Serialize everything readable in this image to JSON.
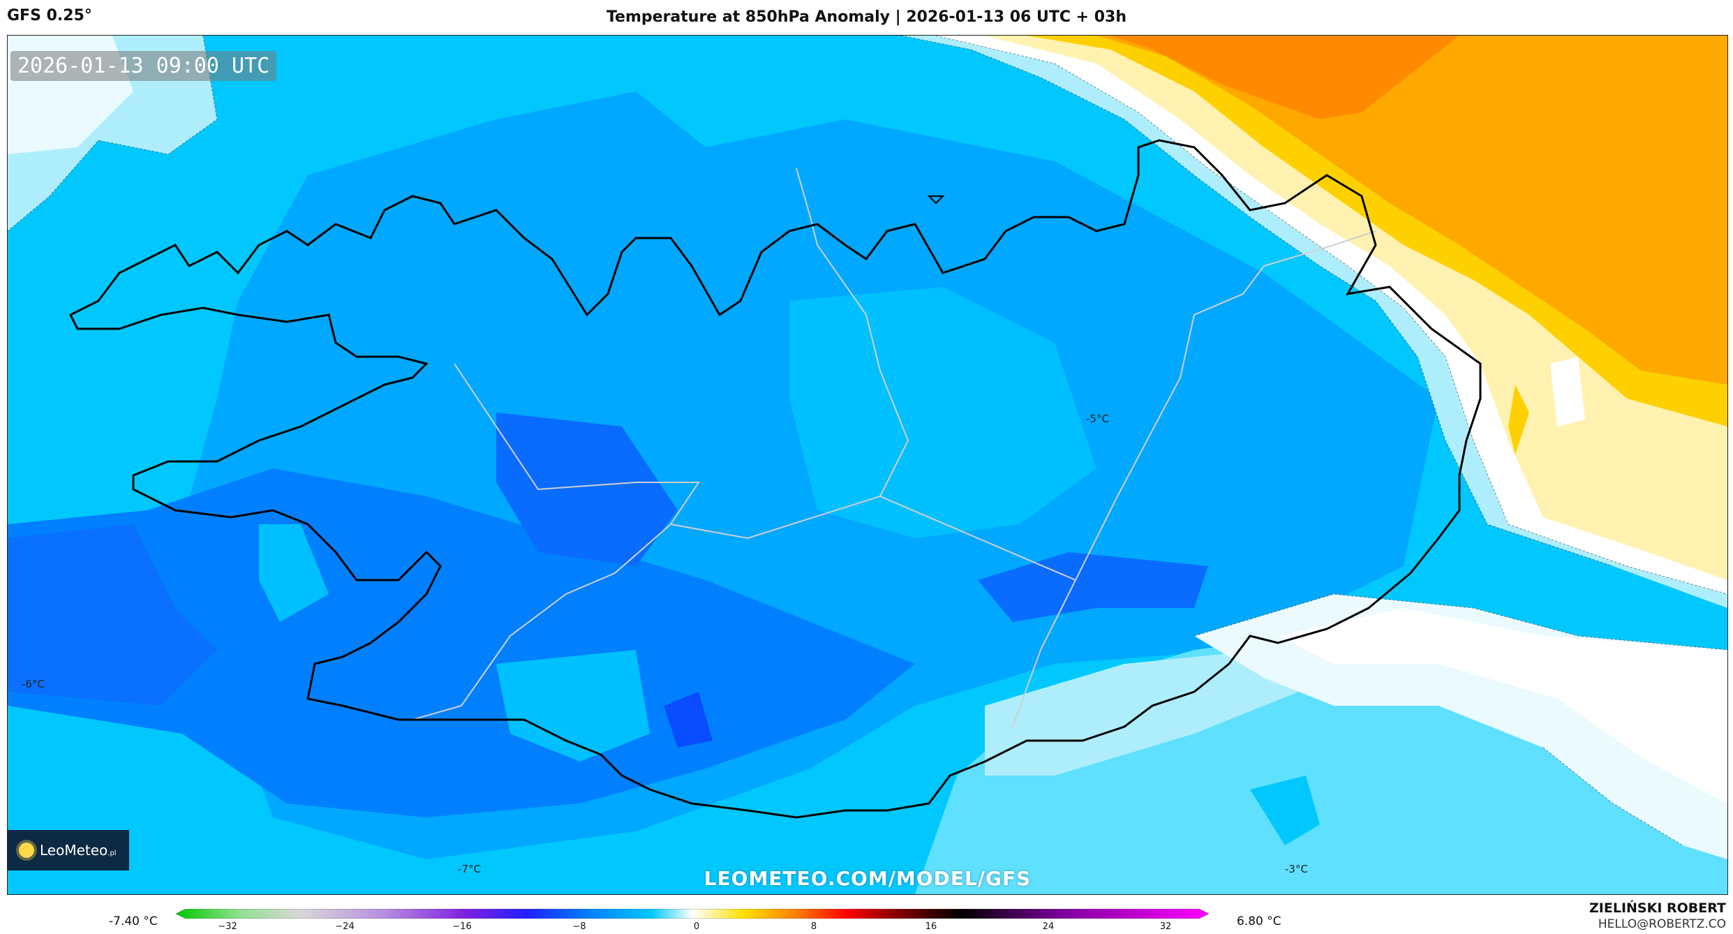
{
  "header": {
    "model": "GFS 0.25°",
    "title": "Temperature at 850hPa Anomaly | 2026-01-13 06 UTC + 03h"
  },
  "map": {
    "timestamp": "2026-01-13 09:00 UTC",
    "site_url": "LEOMETEO.COM/MODEL/GFS",
    "logo": {
      "brand": "LeoMeteo",
      "suffix": ".pl"
    },
    "temperature_labels": [
      "-5°C",
      "-6°C",
      "-7°C",
      "-3°C"
    ],
    "colors": {
      "very_cold": "#0a5cff",
      "cold": "#0080ff",
      "cool": "#00a8ff",
      "mild_cool": "#00c8ff",
      "light_blue": "#5fe0ff",
      "pale_blue": "#aeeefc",
      "near_zero": "#eafaff",
      "white": "#ffffff",
      "pale_yellow": "#fff2b0",
      "yellow": "#ffd000",
      "orange": "#ffa800",
      "dark_orange": "#ff8a00",
      "coastline": "#000000",
      "border": "#cfcfcf"
    }
  },
  "colorbar": {
    "min_label": "-7.40 °C",
    "max_label": "6.80 °C",
    "ticks": [
      "−32",
      "−24",
      "−16",
      "−8",
      "0",
      "8",
      "16",
      "24",
      "32"
    ],
    "gradient": [
      "#00c800",
      "#8ee08e",
      "#d8d8d8",
      "#b890e0",
      "#8020e0",
      "#2020ff",
      "#0080ff",
      "#00c8ff",
      "#ffffff",
      "#ffe000",
      "#ff8000",
      "#ff0000",
      "#800000",
      "#000000",
      "#8000a0",
      "#ff00ff"
    ]
  },
  "credit": {
    "name": "ZIELIŃSKI ROBERT",
    "email": "HELLO@ROBERTZ.CO"
  }
}
